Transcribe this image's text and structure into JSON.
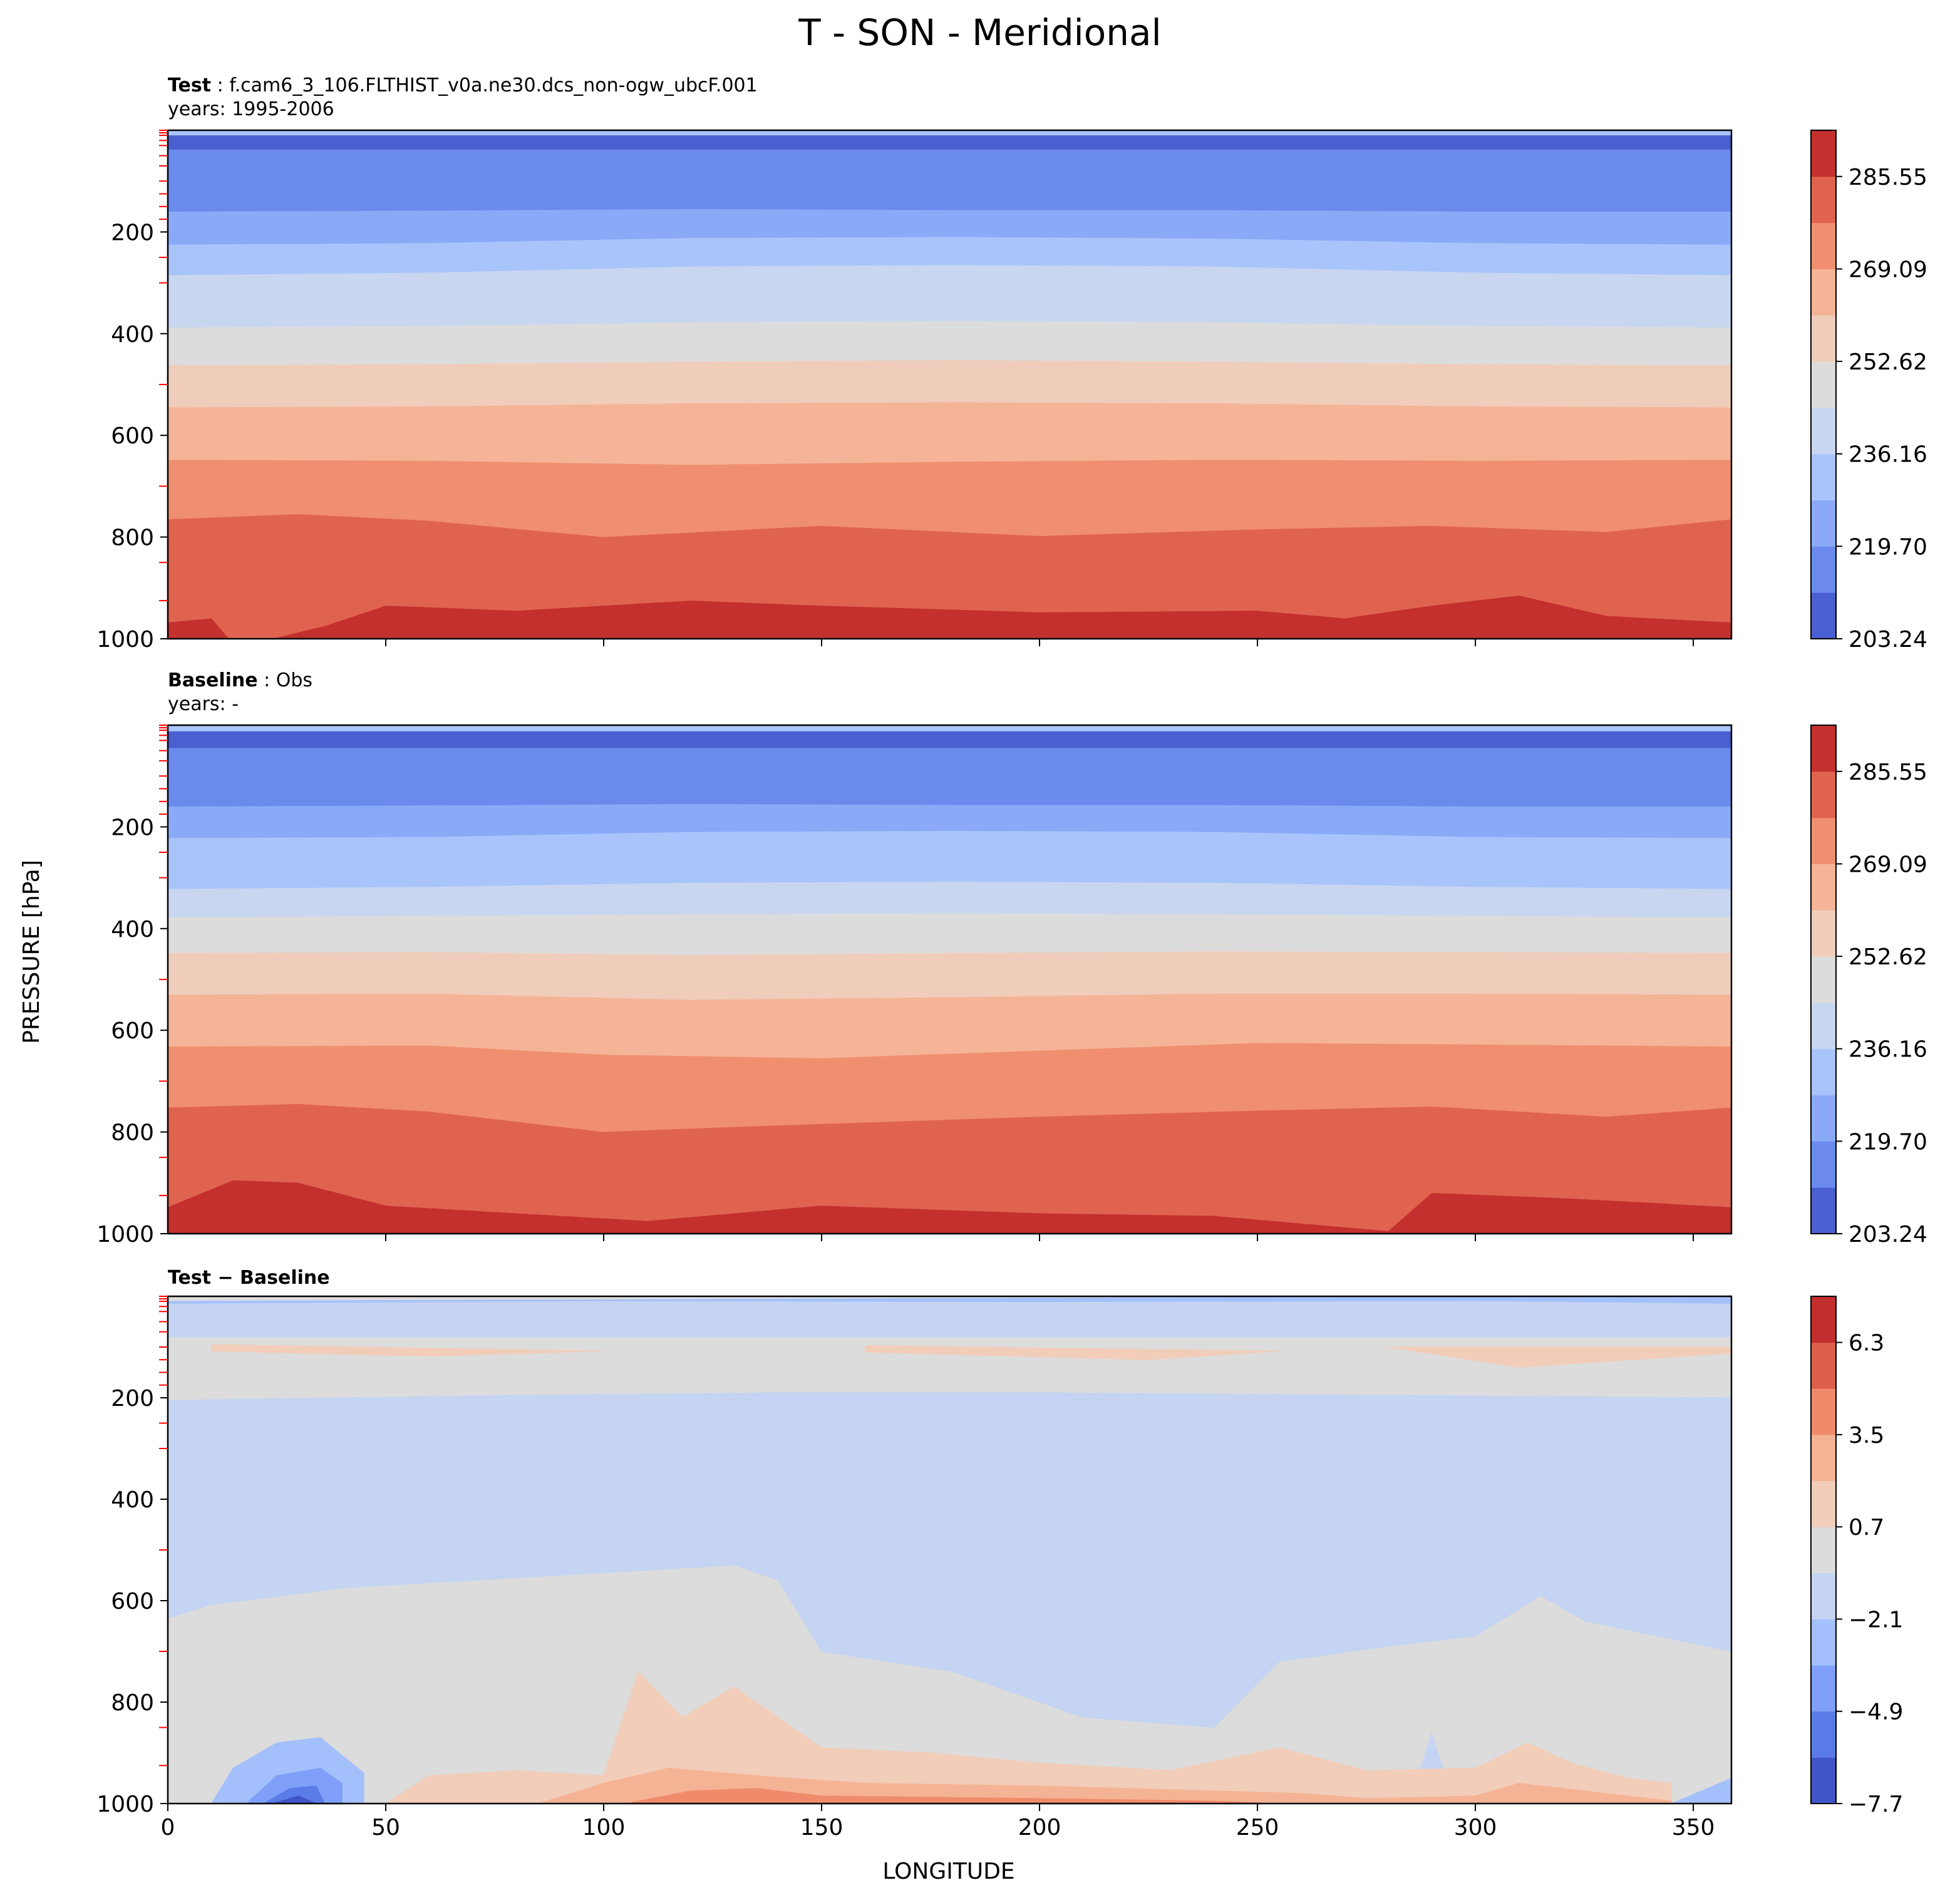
{
  "figure": {
    "suptitle": "T - SON - Meridional",
    "xlabel": "LONGITUDE",
    "ylabel": "PRESSURE [hPa]"
  },
  "colors": {
    "test_baseline_levels": [
      "#4a60d0",
      "#6a8aec",
      "#8aaaf8",
      "#a9c4fb",
      "#c8d6f0",
      "#dcdcdc",
      "#f0cdbb",
      "#f5b497",
      "#f08f6f",
      "#e0634f",
      "#c3302e"
    ],
    "difference_levels": [
      "#4055c8",
      "#5b7be6",
      "#7f9ff8",
      "#a3c0fc",
      "#c4d4f2",
      "#dcdcdc",
      "#f2cdb9",
      "#f5b395",
      "#ef8b6b",
      "#de5f4a",
      "#c22d2d"
    ],
    "tick_marks": "#ff0000"
  },
  "chart_data": [
    {
      "type": "contourf",
      "panel_id": "test",
      "title_bold": "Test",
      "title_text": ": f.cam6_3_106.FLTHIST_v0a.ne30.dcs_non-ogw_ubcF.001",
      "subtitle": "years: 1995-2006",
      "xlim": [
        0,
        358.75
      ],
      "ylim": [
        1000,
        0
      ],
      "yticks": [
        200,
        400,
        600,
        800,
        1000
      ],
      "xticks": [
        50,
        100,
        150,
        200,
        250,
        300,
        350
      ],
      "colorbar": {
        "ticks": [
          "285.55",
          "269.09",
          "252.62",
          "236.16",
          "219.70",
          "203.24"
        ],
        "range": [
          203.24,
          293.78
        ]
      },
      "level_boundaries_hPa": [
        {
          "x": [
            0,
            60,
            120,
            180,
            240,
            300,
            358.75
          ],
          "p": [
            10,
            10,
            10,
            10,
            10,
            10,
            10
          ]
        },
        {
          "x": [
            0,
            60,
            120,
            180,
            240,
            300,
            358.75
          ],
          "p": [
            38,
            38,
            38,
            38,
            38,
            38,
            38
          ]
        },
        {
          "x": [
            0,
            60,
            120,
            180,
            240,
            300,
            358.75
          ],
          "p": [
            160,
            158,
            155,
            157,
            157,
            160,
            160
          ]
        },
        {
          "x": [
            0,
            60,
            120,
            180,
            240,
            300,
            358.75
          ],
          "p": [
            225,
            222,
            212,
            210,
            213,
            222,
            225
          ]
        },
        {
          "x": [
            0,
            60,
            120,
            180,
            240,
            300,
            358.75
          ],
          "p": [
            285,
            280,
            268,
            265,
            268,
            280,
            285
          ]
        },
        {
          "x": [
            0,
            60,
            120,
            180,
            240,
            300,
            358.75
          ],
          "p": [
            388,
            385,
            378,
            375,
            378,
            385,
            388
          ]
        },
        {
          "x": [
            0,
            60,
            120,
            180,
            240,
            300,
            358.75
          ],
          "p": [
            462,
            460,
            455,
            452,
            455,
            460,
            462
          ]
        },
        {
          "x": [
            0,
            60,
            120,
            180,
            240,
            300,
            358.75
          ],
          "p": [
            545,
            543,
            537,
            535,
            537,
            543,
            545
          ]
        },
        {
          "x": [
            0,
            60,
            120,
            180,
            240,
            300,
            358.75
          ],
          "p": [
            648,
            650,
            658,
            652,
            648,
            650,
            648
          ]
        },
        {
          "x": [
            0,
            30,
            60,
            100,
            150,
            200,
            250,
            290,
            330,
            358.75
          ],
          "p": [
            765,
            755,
            768,
            800,
            778,
            798,
            785,
            778,
            790,
            765
          ]
        },
        {
          "x": [
            0,
            10,
            14,
            24,
            36,
            50,
            80,
            120,
            150,
            200,
            250,
            270,
            290,
            310,
            330,
            358.75
          ],
          "p": [
            968,
            960,
            1000,
            1000,
            975,
            935,
            945,
            925,
            935,
            948,
            945,
            960,
            935,
            915,
            955,
            968
          ]
        }
      ]
    },
    {
      "type": "contourf",
      "panel_id": "baseline",
      "title_bold": "Baseline",
      "title_text": ": Obs",
      "subtitle": "years: -",
      "xlim": [
        0,
        358.75
      ],
      "ylim": [
        1000,
        0
      ],
      "yticks": [
        200,
        400,
        600,
        800,
        1000
      ],
      "xticks": [
        50,
        100,
        150,
        200,
        250,
        300,
        350
      ],
      "colorbar": {
        "ticks": [
          "285.55",
          "269.09",
          "252.62",
          "236.16",
          "219.70",
          "203.24"
        ],
        "range": [
          203.24,
          293.78
        ]
      },
      "level_boundaries_hPa": [
        {
          "x": [
            0,
            60,
            120,
            180,
            240,
            300,
            358.75
          ],
          "p": [
            12,
            12,
            12,
            12,
            12,
            12,
            12
          ]
        },
        {
          "x": [
            0,
            60,
            120,
            180,
            240,
            300,
            358.75
          ],
          "p": [
            45,
            45,
            45,
            45,
            45,
            45,
            45
          ]
        },
        {
          "x": [
            0,
            60,
            120,
            180,
            240,
            300,
            358.75
          ],
          "p": [
            160,
            158,
            155,
            157,
            157,
            160,
            160
          ]
        },
        {
          "x": [
            0,
            60,
            120,
            180,
            240,
            300,
            358.75
          ],
          "p": [
            222,
            220,
            210,
            208,
            210,
            220,
            222
          ]
        },
        {
          "x": [
            0,
            60,
            120,
            180,
            240,
            300,
            358.75
          ],
          "p": [
            322,
            318,
            310,
            308,
            310,
            318,
            322
          ]
        },
        {
          "x": [
            0,
            60,
            120,
            180,
            240,
            300,
            358.75
          ],
          "p": [
            378,
            375,
            372,
            370,
            372,
            375,
            378
          ]
        },
        {
          "x": [
            0,
            60,
            120,
            180,
            240,
            300,
            358.75
          ],
          "p": [
            448,
            446,
            452,
            448,
            445,
            446,
            448
          ]
        },
        {
          "x": [
            0,
            60,
            120,
            180,
            240,
            300,
            358.75
          ],
          "p": [
            530,
            528,
            540,
            535,
            528,
            528,
            530
          ]
        },
        {
          "x": [
            0,
            60,
            100,
            150,
            200,
            250,
            300,
            358.75
          ],
          "p": [
            632,
            630,
            648,
            655,
            640,
            625,
            628,
            632
          ]
        },
        {
          "x": [
            0,
            30,
            60,
            100,
            130,
            200,
            250,
            290,
            330,
            358.75
          ],
          "p": [
            752,
            745,
            760,
            800,
            790,
            770,
            758,
            750,
            770,
            752
          ]
        },
        {
          "x": [
            0,
            15,
            30,
            50,
            80,
            110,
            150,
            200,
            240,
            280,
            290,
            320,
            358.75
          ],
          "p": [
            948,
            895,
            900,
            945,
            960,
            975,
            945,
            960,
            965,
            995,
            920,
            930,
            948
          ]
        }
      ]
    },
    {
      "type": "contourf",
      "panel_id": "difference",
      "title_bold": "Test",
      "title_minus": "−",
      "title_bold2": "Baseline",
      "xlim": [
        0,
        358.75
      ],
      "ylim": [
        1000,
        0
      ],
      "yticks": [
        200,
        400,
        600,
        800,
        1000
      ],
      "xticks": [
        0,
        50,
        100,
        150,
        200,
        250,
        300,
        350
      ],
      "colorbar": {
        "ticks": [
          "6.3",
          "3.5",
          "0.7",
          "−2.1",
          "−4.9",
          "−7.7"
        ],
        "range": [
          -7.7,
          7.7
        ]
      },
      "background_level": 5,
      "regions": [
        {
          "level": 3,
          "x": [
            0,
            300,
            358.75,
            358.75,
            0
          ],
          "p": [
            10,
            0,
            0,
            25,
            25
          ]
        },
        {
          "level": 4,
          "x": [
            0,
            100,
            200,
            300,
            358.75,
            358.75,
            0
          ],
          "p": [
            15,
            10,
            12,
            10,
            15,
            80,
            80
          ]
        },
        {
          "level": 6,
          "x": [
            10,
            100,
            60,
            10
          ],
          "p": [
            95,
            108,
            118,
            108
          ]
        },
        {
          "level": 6,
          "x": [
            160,
            255,
            225,
            160
          ],
          "p": [
            97,
            108,
            125,
            110
          ]
        },
        {
          "level": 6,
          "x": [
            280,
            358.75,
            358.75,
            310
          ],
          "p": [
            100,
            100,
            112,
            140
          ]
        },
        {
          "level": 4,
          "x": [
            0,
            10,
            40,
            80,
            130,
            140,
            150,
            180,
            210,
            240,
            255,
            280,
            300,
            315,
            325,
            358.75,
            358.75,
            280,
            200,
            140,
            80,
            0
          ],
          "p": [
            635,
            608,
            575,
            555,
            530,
            560,
            700,
            740,
            830,
            850,
            720,
            690,
            670,
            590,
            640,
            700,
            200,
            195,
            190,
            190,
            195,
            205
          ]
        },
        {
          "level": 4,
          "x": [
            285,
            290,
            295,
            290
          ],
          "p": [
            1000,
            860,
            1000,
            1000
          ]
        },
        {
          "level": 6,
          "x": [
            50,
            60,
            80,
            100,
            108,
            118,
            130,
            145,
            150,
            175,
            200,
            230,
            255,
            275,
            300,
            312,
            322,
            335,
            345,
            345
          ],
          "p": [
            1000,
            945,
            935,
            945,
            740,
            830,
            770,
            860,
            890,
            900,
            920,
            935,
            890,
            935,
            930,
            880,
            920,
            950,
            960,
            1000
          ],
          "closed_bottom": true
        },
        {
          "level": 7,
          "x": [
            85,
            100,
            115,
            135,
            160,
            200,
            240,
            260,
            275,
            300,
            310,
            325,
            345,
            345,
            85
          ],
          "p": [
            1000,
            960,
            930,
            945,
            960,
            965,
            975,
            980,
            990,
            985,
            960,
            975,
            995,
            1000,
            1000
          ]
        },
        {
          "level": 8,
          "x": [
            105,
            120,
            135,
            150,
            200,
            240,
            255,
            255,
            105
          ],
          "p": [
            1000,
            975,
            970,
            985,
            990,
            995,
            1000,
            1000,
            1000
          ]
        },
        {
          "level": 3,
          "x": [
            10,
            15,
            25,
            35,
            45,
            45,
            10
          ],
          "p": [
            1000,
            930,
            880,
            870,
            940,
            1000,
            1000
          ]
        },
        {
          "level": 2,
          "x": [
            18,
            25,
            35,
            40,
            40,
            18
          ],
          "p": [
            1000,
            945,
            930,
            960,
            1000,
            1000
          ]
        },
        {
          "level": 1,
          "x": [
            22,
            28,
            34,
            36,
            22
          ],
          "p": [
            1000,
            970,
            965,
            1000,
            1000
          ]
        },
        {
          "level": 0,
          "x": [
            24,
            30,
            34,
            24
          ],
          "p": [
            1000,
            985,
            1000,
            1000
          ]
        },
        {
          "level": 3,
          "x": [
            345,
            358.75,
            358.75,
            345
          ],
          "p": [
            1000,
            950,
            1000,
            1000
          ]
        }
      ]
    }
  ]
}
